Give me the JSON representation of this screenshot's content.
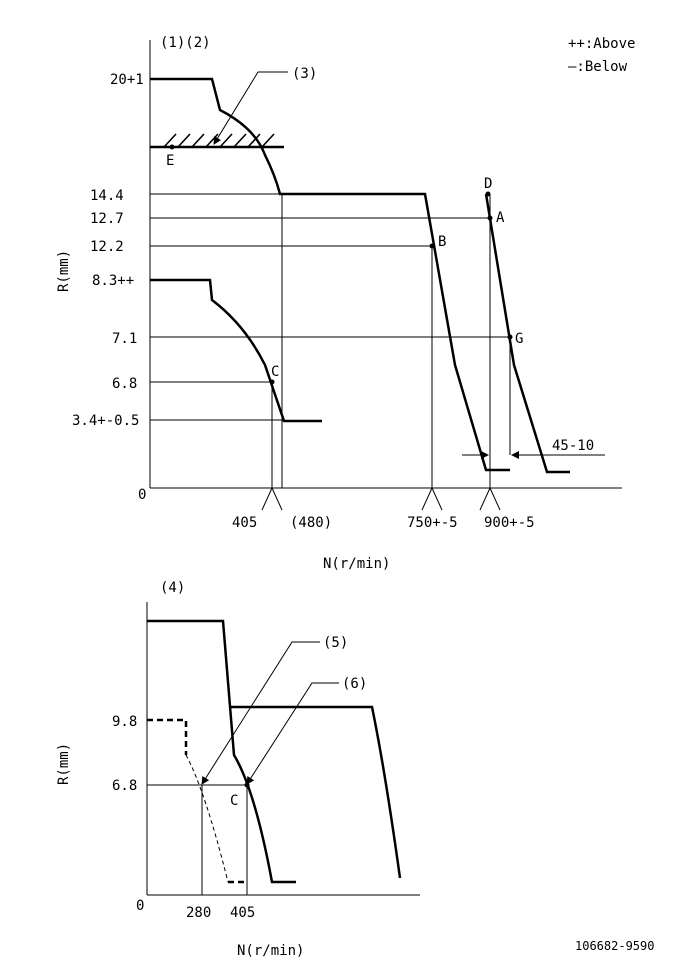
{
  "diagram1": {
    "header": "(1)(2)",
    "legend": {
      "above": "++:Above",
      "below": "—:Below"
    },
    "ylabel": "R(mm)",
    "xlabel": "N(r/min)",
    "origin": "0",
    "y_ticks": [
      "20+1",
      "14.4",
      "12.7",
      "12.2",
      "8.3++",
      "7.1",
      "6.8",
      "3.4+-0.5"
    ],
    "x_ticks": [
      "405",
      "(480)",
      "750+-5",
      "900+-5"
    ],
    "callout": "(3)",
    "points": [
      "E",
      "D",
      "A",
      "B",
      "G",
      "C"
    ],
    "tolerance": "45-10"
  },
  "diagram2": {
    "header": "(4)",
    "ylabel": "R(mm)",
    "xlabel": "N(r/min)",
    "origin": "0",
    "y_ticks": [
      "9.8",
      "6.8"
    ],
    "x_ticks": [
      "280",
      "405"
    ],
    "callouts": [
      "(5)",
      "(6)"
    ],
    "point": "C"
  },
  "drawing_number": "106682-9590"
}
